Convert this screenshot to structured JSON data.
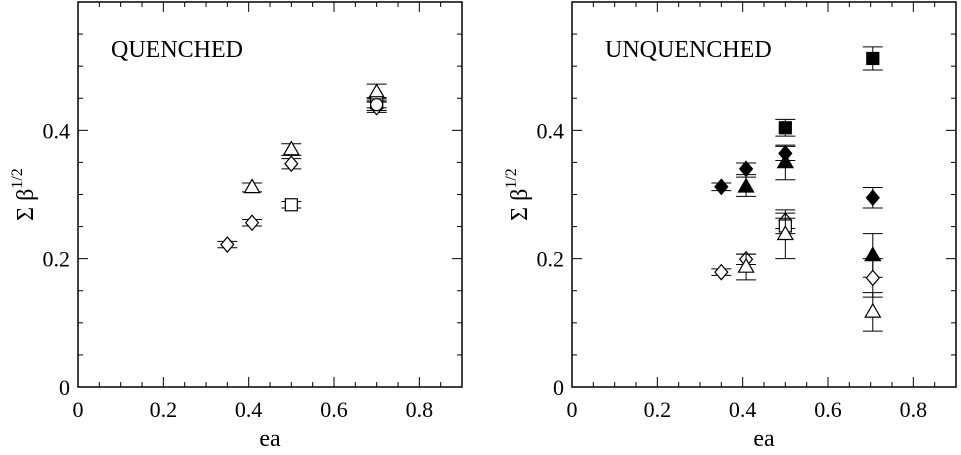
{
  "chart_data": [
    {
      "type": "scatter",
      "title": "QUENCHED",
      "xlabel": "ea",
      "ylabel_main": "Σ β",
      "ylabel_sup": "1/2",
      "xlim": [
        0,
        0.9
      ],
      "ylim": [
        0,
        0.6
      ],
      "xticks": [
        "0",
        "0.2",
        "0.4",
        "0.6",
        "0.8"
      ],
      "xtick_values": [
        0,
        0.2,
        0.4,
        0.6,
        0.8
      ],
      "yticks": [
        "0",
        "0.2",
        "0.4"
      ],
      "ytick_values": [
        0,
        0.2,
        0.4
      ],
      "grid": false,
      "series": [
        {
          "marker": "open-triangle",
          "points": [
            {
              "x": 0.408,
              "y": 0.311,
              "err": 0.007
            },
            {
              "x": 0.5,
              "y": 0.37,
              "err": 0.009
            },
            {
              "x": 0.7,
              "y": 0.459,
              "err": 0.013
            }
          ]
        },
        {
          "marker": "open-diamond",
          "points": [
            {
              "x": 0.35,
              "y": 0.222,
              "err": 0.005
            },
            {
              "x": 0.408,
              "y": 0.256,
              "err": 0.005
            },
            {
              "x": 0.5,
              "y": 0.348,
              "err": 0.008
            },
            {
              "x": 0.7,
              "y": 0.436,
              "err": 0.008
            }
          ]
        },
        {
          "marker": "open-square",
          "points": [
            {
              "x": 0.5,
              "y": 0.284,
              "err": 0.005
            },
            {
              "x": 0.7,
              "y": 0.443,
              "err": 0.008
            }
          ]
        },
        {
          "marker": "open-circle",
          "points": [
            {
              "x": 0.7,
              "y": 0.44,
              "err": 0.009
            }
          ]
        }
      ]
    },
    {
      "type": "scatter",
      "title": "UNQUENCHED",
      "xlabel": "ea",
      "ylabel_main": "Σ β",
      "ylabel_sup": "1/2",
      "xlim": [
        0,
        0.9
      ],
      "ylim": [
        0,
        0.6
      ],
      "xticks": [
        "0",
        "0.2",
        "0.4",
        "0.6",
        "0.8"
      ],
      "xtick_values": [
        0,
        0.2,
        0.4,
        0.6,
        0.8
      ],
      "yticks": [
        "0",
        "0.2",
        "0.4"
      ],
      "ytick_values": [
        0,
        0.2,
        0.4
      ],
      "grid": false,
      "series": [
        {
          "marker": "filled-square",
          "points": [
            {
              "x": 0.5,
              "y": 0.404,
              "err": 0.013
            },
            {
              "x": 0.705,
              "y": 0.512,
              "err": 0.018
            }
          ]
        },
        {
          "marker": "filled-diamond",
          "points": [
            {
              "x": 0.35,
              "y": 0.312,
              "err": 0.006
            },
            {
              "x": 0.408,
              "y": 0.34,
              "err": 0.009
            },
            {
              "x": 0.5,
              "y": 0.364,
              "err": 0.011
            },
            {
              "x": 0.705,
              "y": 0.295,
              "err": 0.016
            }
          ]
        },
        {
          "marker": "filled-triangle",
          "points": [
            {
              "x": 0.408,
              "y": 0.312,
              "err": 0.015
            },
            {
              "x": 0.5,
              "y": 0.35,
              "err": 0.027
            },
            {
              "x": 0.705,
              "y": 0.205,
              "err": 0.034
            }
          ]
        },
        {
          "marker": "open-diamond",
          "points": [
            {
              "x": 0.35,
              "y": 0.179,
              "err": 0.005
            },
            {
              "x": 0.408,
              "y": 0.199,
              "err": 0.008
            },
            {
              "x": 0.5,
              "y": 0.259,
              "err": 0.012
            },
            {
              "x": 0.705,
              "y": 0.17,
              "err": 0.03
            }
          ]
        },
        {
          "marker": "open-square",
          "points": [
            {
              "x": 0.5,
              "y": 0.251,
              "err": 0.012
            }
          ]
        },
        {
          "marker": "open-triangle",
          "points": [
            {
              "x": 0.408,
              "y": 0.187,
              "err": 0.02
            },
            {
              "x": 0.5,
              "y": 0.238,
              "err": 0.038
            },
            {
              "x": 0.705,
              "y": 0.117,
              "err": 0.03
            }
          ]
        }
      ]
    }
  ]
}
